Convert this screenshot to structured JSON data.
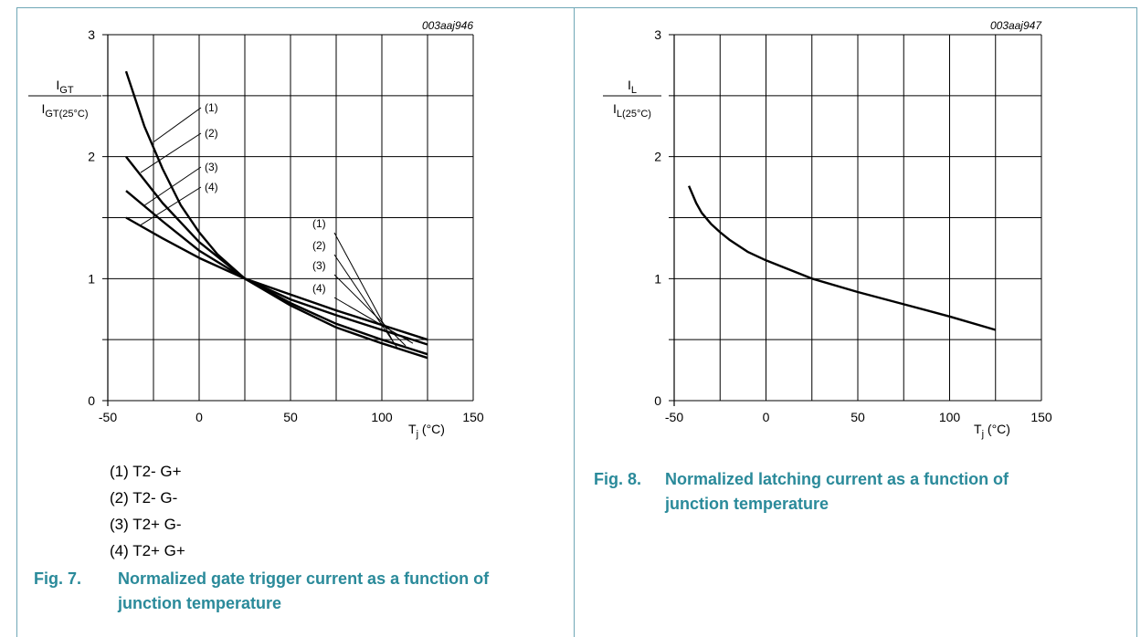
{
  "chart_data": [
    {
      "type": "line",
      "id_code": "003aaj946",
      "ylabel_num": "I",
      "ylabel_num_sub": "GT",
      "ylabel_den": "I",
      "ylabel_den_sub": "GT(25°C)",
      "xlabel_main": "T",
      "xlabel_sub": "j",
      "xlabel_unit": "(°C)",
      "xlim": [
        -50,
        150
      ],
      "ylim": [
        0,
        3
      ],
      "x_ticks": [
        -50,
        0,
        50,
        100,
        150
      ],
      "y_ticks": [
        0,
        1,
        2,
        3
      ],
      "x_tick_labels": [
        "-50",
        "0",
        "50",
        "100",
        "150"
      ],
      "y_tick_labels": [
        "0",
        "1",
        "2",
        "3"
      ],
      "grid": true,
      "series": [
        {
          "name": "(1)",
          "x": [
            -40,
            -30,
            -20,
            -10,
            0,
            10,
            25,
            50,
            75,
            100,
            125
          ],
          "y": [
            2.7,
            2.25,
            1.9,
            1.6,
            1.38,
            1.2,
            1.0,
            0.8,
            0.63,
            0.5,
            0.38
          ]
        },
        {
          "name": "(2)",
          "x": [
            -40,
            -20,
            0,
            25,
            50,
            75,
            100,
            125
          ],
          "y": [
            2.0,
            1.62,
            1.3,
            1.0,
            0.78,
            0.6,
            0.47,
            0.35
          ]
        },
        {
          "name": "(3)",
          "x": [
            -40,
            -20,
            0,
            25,
            50,
            75,
            100,
            125
          ],
          "y": [
            1.72,
            1.47,
            1.23,
            1.0,
            0.83,
            0.7,
            0.58,
            0.46
          ]
        },
        {
          "name": "(4)",
          "x": [
            -40,
            -20,
            0,
            25,
            50,
            75,
            100,
            125
          ],
          "y": [
            1.5,
            1.33,
            1.17,
            1.0,
            0.87,
            0.74,
            0.62,
            0.5
          ]
        }
      ],
      "left_labels": [
        "(1)",
        "(2)",
        "(3)",
        "(4)"
      ],
      "right_labels": [
        "(1)",
        "(2)",
        "(3)",
        "(4)"
      ]
    },
    {
      "type": "line",
      "id_code": "003aaj947",
      "ylabel_num": "I",
      "ylabel_num_sub": "L",
      "ylabel_den": "I",
      "ylabel_den_sub": "L(25°C)",
      "xlabel_main": "T",
      "xlabel_sub": "j",
      "xlabel_unit": "(°C)",
      "xlim": [
        -50,
        150
      ],
      "ylim": [
        0,
        3
      ],
      "x_ticks": [
        -50,
        0,
        50,
        100,
        150
      ],
      "y_ticks": [
        0,
        1,
        2,
        3
      ],
      "x_tick_labels": [
        "-50",
        "0",
        "50",
        "100",
        "150"
      ],
      "y_tick_labels": [
        "0",
        "1",
        "2",
        "3"
      ],
      "grid": true,
      "series": [
        {
          "x": [
            -42,
            -38,
            -35,
            -30,
            -25,
            -20,
            -10,
            0,
            10,
            25,
            50,
            75,
            100,
            125
          ],
          "y": [
            1.76,
            1.62,
            1.54,
            1.45,
            1.38,
            1.32,
            1.22,
            1.15,
            1.09,
            1.0,
            0.89,
            0.79,
            0.69,
            0.58
          ]
        }
      ]
    }
  ],
  "legend": [
    "(1) T2- G+",
    "(2) T2- G-",
    "(3) T2+ G-",
    "(4) T2+ G+"
  ],
  "captions": [
    {
      "fig": "Fig. 7.",
      "line1": "Normalized gate trigger current as a function of",
      "line2": "junction temperature"
    },
    {
      "fig": "Fig. 8.",
      "line1": "Normalized latching current as a function of",
      "line2": "junction temperature"
    }
  ],
  "colors": {
    "frame": "#6fa7b6",
    "caption": "#2a8a9a",
    "grid": "#000000"
  }
}
